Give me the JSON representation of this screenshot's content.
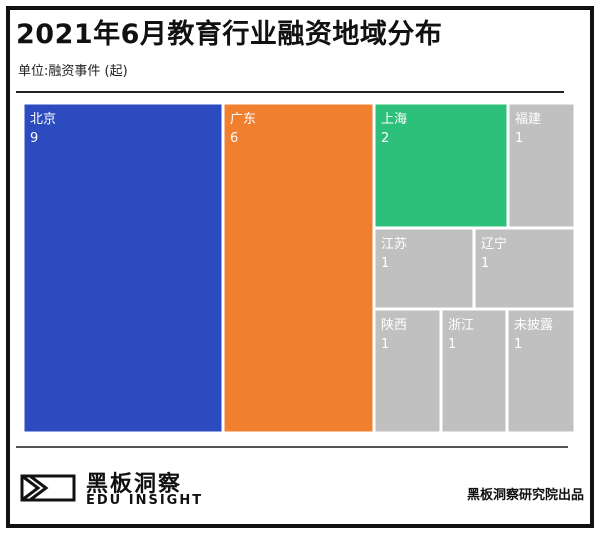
{
  "title": "2021年6月教育行业融资地域分布",
  "subtitle": "单位:融资事件 (起)",
  "chart_data": {
    "type": "treemap",
    "title": "2021年6月教育行业融资地域分布",
    "unit": "单位:融资事件 (起)",
    "items": [
      {
        "label": "北京",
        "value": 9,
        "color": "#2B4BBF"
      },
      {
        "label": "广东",
        "value": 6,
        "color": "#F08030"
      },
      {
        "label": "上海",
        "value": 2,
        "color": "#2DC07A"
      },
      {
        "label": "福建",
        "value": 1,
        "color": "#C0C0C0"
      },
      {
        "label": "江苏",
        "value": 1,
        "color": "#C0C0C0"
      },
      {
        "label": "辽宁",
        "value": 1,
        "color": "#C0C0C0"
      },
      {
        "label": "陕西",
        "value": 1,
        "color": "#C0C0C0"
      },
      {
        "label": "浙江",
        "value": 1,
        "color": "#C0C0C0"
      },
      {
        "label": "未披露",
        "value": 1,
        "color": "#C0C0C0"
      }
    ]
  },
  "footer": {
    "brand_cn": "黑板洞察",
    "brand_en": "EDU INSIGHT",
    "source": "黑板洞察研究院出品"
  }
}
